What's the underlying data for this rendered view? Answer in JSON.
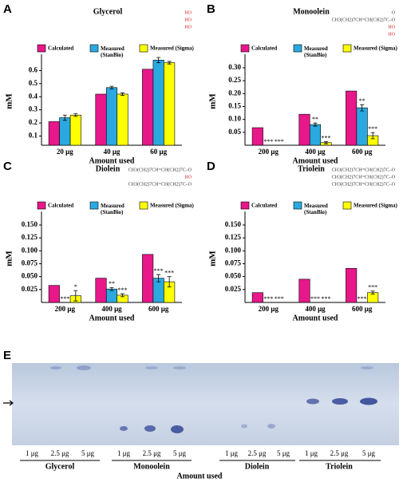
{
  "chart_data": [
    {
      "type": "bar",
      "panel": "A",
      "title": "Glycerol",
      "structure": [
        "HO",
        "HO",
        "HO"
      ],
      "categories": [
        "20 μg",
        "40 μg",
        "60 μg"
      ],
      "xlabel": "Amount used",
      "ylabel": "mM",
      "ylim": [
        0.03,
        0.7
      ],
      "yticks": [
        0.1,
        0.2,
        0.3,
        0.4,
        0.5,
        0.6
      ],
      "series": [
        {
          "name": "Calculated",
          "color": "#e8178a",
          "values": [
            0.21,
            0.42,
            0.61
          ]
        },
        {
          "name": "Measured (StanBio)",
          "color": "#2aa9e0",
          "values": [
            0.24,
            0.47,
            0.68
          ],
          "errors": [
            0.02,
            0.01,
            0.02
          ]
        },
        {
          "name": "Measured (Sigma)",
          "color": "#ffff00",
          "values": [
            0.26,
            0.42,
            0.66
          ],
          "errors": [
            0.01,
            0.01,
            0.01
          ]
        }
      ]
    },
    {
      "type": "bar",
      "panel": "B",
      "title": "Monoolein",
      "structure": [
        "O",
        "CH3(CH2)7CH=CH(CH2)7C–O",
        "HO",
        "HO"
      ],
      "categories": [
        "200 μg",
        "400 μg",
        "600 μg"
      ],
      "xlabel": "Amount used",
      "ylabel": "mM",
      "ylim": [
        0,
        0.34
      ],
      "yticks": [
        0.05,
        {
          "value": 0.1,
          "label": "0.10"
        },
        0.15,
        {
          "value": 0.2,
          "label": "0.20"
        },
        0.25,
        {
          "value": 0.3,
          "label": "0.30"
        }
      ],
      "series": [
        {
          "name": "Calculated",
          "color": "#e8178a",
          "values": [
            0.068,
            0.12,
            0.21
          ]
        },
        {
          "name": "Measured (StanBio)",
          "color": "#2aa9e0",
          "values": [
            0,
            0.08,
            0.145
          ],
          "errors": [
            0,
            0.006,
            0.012
          ],
          "significance": [
            "***",
            "**",
            "**"
          ]
        },
        {
          "name": "Measured (Sigma)",
          "color": "#ffff00",
          "values": [
            0,
            0.01,
            0.037
          ],
          "errors": [
            0,
            0.004,
            0.012
          ],
          "significance": [
            "***",
            "***",
            "***"
          ]
        }
      ]
    },
    {
      "type": "bar",
      "panel": "C",
      "title": "Diolein",
      "structure": [
        "CH3(CH2)7CH=CH(CH2)7C–O",
        "HO",
        "CH3(CH2)7CH=CH(CH2)7C–O"
      ],
      "categories": [
        "200 μg",
        "400 μg",
        "600 μg"
      ],
      "xlabel": "Amount used",
      "ylabel": "mM",
      "ylim": [
        0,
        0.17
      ],
      "yticks": [
        0.025,
        {
          "value": 0.05,
          "label": "0.050"
        },
        0.075,
        {
          "value": 0.1,
          "label": "0.100"
        },
        0.125,
        {
          "value": 0.15,
          "label": "0.150"
        }
      ],
      "series": [
        {
          "name": "Calculated",
          "color": "#e8178a",
          "values": [
            0.033,
            0.047,
            0.093
          ]
        },
        {
          "name": "Measured (StanBio)",
          "color": "#2aa9e0",
          "values": [
            0,
            0.026,
            0.047
          ],
          "errors": [
            0,
            0.003,
            0.007
          ],
          "significance": [
            "***",
            "**",
            "***"
          ]
        },
        {
          "name": "Measured (Sigma)",
          "color": "#ffff00",
          "values": [
            0.013,
            0.014,
            0.04
          ],
          "errors": [
            0.01,
            0.003,
            0.01
          ],
          "significance": [
            "*",
            "***",
            "***"
          ]
        }
      ]
    },
    {
      "type": "bar",
      "panel": "D",
      "title": "Triolein",
      "structure": [
        "CH3(CH2)7CH=CH(CH2)7C–O",
        "CH3(CH2)7CH=CH(CH2)7C–O",
        "CH3(CH2)7CH=CH(CH2)7C–O"
      ],
      "categories": [
        "200 μg",
        "400 μg",
        "600 μg"
      ],
      "xlabel": "Amount used",
      "ylabel": "mM",
      "ylim": [
        0,
        0.17
      ],
      "yticks": [
        0.025,
        {
          "value": 0.05,
          "label": "0.050"
        },
        0.075,
        {
          "value": 0.1,
          "label": "0.100"
        },
        0.125,
        {
          "value": 0.15,
          "label": "0.150"
        }
      ],
      "series": [
        {
          "name": "Calculated",
          "color": "#e8178a",
          "values": [
            0.019,
            0.045,
            0.066
          ]
        },
        {
          "name": "Measured (StanBio)",
          "color": "#2aa9e0",
          "values": [
            0,
            0,
            0
          ],
          "errors": [
            0,
            0,
            0
          ],
          "significance": [
            "***",
            "***",
            "***"
          ]
        },
        {
          "name": "Measured (Sigma)",
          "color": "#ffff00",
          "values": [
            0,
            0,
            0.019
          ],
          "errors": [
            0,
            0,
            0.003
          ],
          "significance": [
            "***",
            "***",
            "***"
          ]
        }
      ]
    }
  ],
  "tlc": {
    "panel": "E",
    "xlabel": "Amount used",
    "groups": [
      {
        "name": "Glycerol",
        "lanes": [
          "1 μg",
          "2.5 μg",
          "5 μg"
        ]
      },
      {
        "name": "Monoolein",
        "lanes": [
          "1 μg",
          "2.5 μg",
          "5 μg"
        ]
      },
      {
        "name": "Diolein",
        "lanes": [
          "1 μg",
          "2.5 μg",
          "5 μg"
        ]
      },
      {
        "name": "Triolein",
        "lanes": [
          "1 μg",
          "2.5 μg",
          "5 μg"
        ]
      }
    ]
  }
}
